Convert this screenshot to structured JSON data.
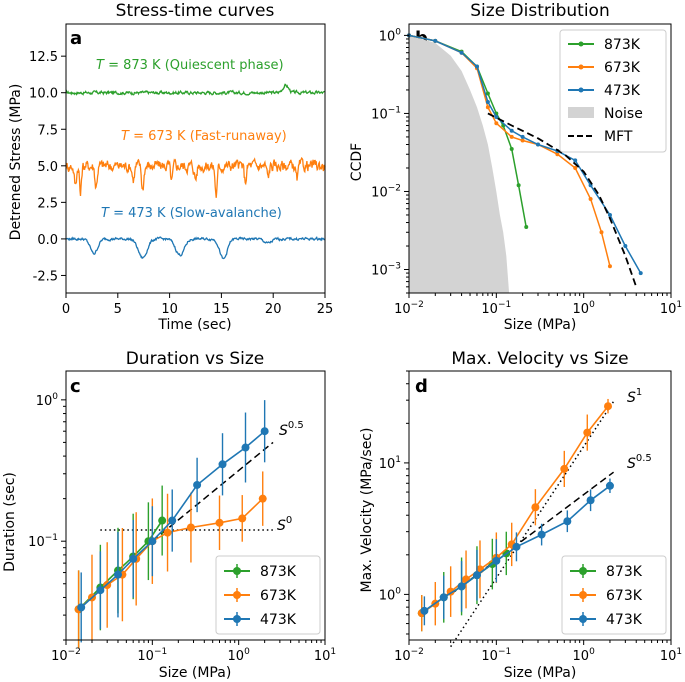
{
  "chart_data": [
    {
      "panel": "a",
      "type": "line",
      "title": "Stress-time curves",
      "xlabel": "Time (sec)",
      "ylabel": "Detrened Stress (MPa)",
      "xlim": [
        0,
        25
      ],
      "ylim": [
        -3.7,
        14.7
      ],
      "xticks": [
        "0",
        "5",
        "10",
        "15",
        "20",
        "25"
      ],
      "yticks": [
        "-2.5",
        "0.0",
        "2.5",
        "5.0",
        "7.5",
        "10.0",
        "12.5"
      ],
      "annotations": [
        {
          "T": "T",
          "text": " = 873 K (Quiescent phase)",
          "color": "#2ca02c"
        },
        {
          "T": "T",
          "text": " = 673 K (Fast-runaway)",
          "color": "#ff7f0e"
        },
        {
          "T": "T",
          "text": " = 473 K (Slow-avalanche)",
          "color": "#1f77b4"
        }
      ],
      "series": [
        {
          "name": "873K",
          "color": "#2ca02c",
          "baseline": 10.0,
          "noise": 0.12,
          "events": [
            [
              21.2,
              0.5,
              0.4
            ]
          ]
        },
        {
          "name": "673K",
          "color": "#ff7f0e",
          "baseline": 5.0,
          "noise": 0.45,
          "events": [
            [
              0.9,
              -1.3,
              0.15
            ],
            [
              1.4,
              -2.0,
              0.12
            ],
            [
              2.9,
              -1.4,
              0.15
            ],
            [
              6.5,
              -0.9,
              0.15
            ],
            [
              7.4,
              -1.6,
              0.15
            ],
            [
              10.2,
              -1.1,
              0.15
            ],
            [
              12.5,
              -0.9,
              0.15
            ],
            [
              14.5,
              -2.0,
              0.15
            ],
            [
              17.3,
              -1.1,
              0.15
            ],
            [
              19.5,
              -0.8,
              0.15
            ],
            [
              22.3,
              -1.0,
              0.15
            ]
          ]
        },
        {
          "name": "473K",
          "color": "#1f77b4",
          "baseline": 0.0,
          "noise": 0.1,
          "events": [
            [
              2.7,
              -1.0,
              0.5
            ],
            [
              7.4,
              -1.3,
              0.6
            ],
            [
              11.0,
              -1.1,
              0.6
            ],
            [
              15.2,
              -1.4,
              0.5
            ],
            [
              19.5,
              -0.3,
              0.5
            ]
          ]
        }
      ]
    },
    {
      "panel": "b",
      "type": "line",
      "title": "Size Distribution",
      "xlabel": "Size (MPa)",
      "ylabel": "CCDF",
      "xscale": "log",
      "yscale": "log",
      "xlim": [
        0.01,
        10
      ],
      "ylim": [
        0.0005,
        1.4
      ],
      "xticks": [
        {
          "base": "10",
          "exp": "−2"
        },
        {
          "base": "10",
          "exp": "−1"
        },
        {
          "base": "10",
          "exp": "0"
        },
        {
          "base": "10",
          "exp": "1"
        }
      ],
      "yticks": [
        {
          "base": "10",
          "exp": "−3"
        },
        {
          "base": "10",
          "exp": "−2"
        },
        {
          "base": "10",
          "exp": "−1"
        },
        {
          "base": "10",
          "exp": "0"
        }
      ],
      "legend": [
        "873K",
        "673K",
        "473K",
        "Noise",
        "MFT"
      ],
      "legend_position": "upper right",
      "series": [
        {
          "name": "873K",
          "color": "#2ca02c",
          "x": [
            0.01,
            0.02,
            0.04,
            0.06,
            0.08,
            0.1,
            0.12,
            0.15,
            0.18,
            0.22
          ],
          "y": [
            1.0,
            0.85,
            0.62,
            0.4,
            0.18,
            0.1,
            0.07,
            0.035,
            0.012,
            0.0035
          ]
        },
        {
          "name": "673K",
          "color": "#ff7f0e",
          "x": [
            0.01,
            0.02,
            0.04,
            0.06,
            0.08,
            0.1,
            0.15,
            0.2,
            0.3,
            0.5,
            0.8,
            1.2,
            1.6,
            2.0
          ],
          "y": [
            1.0,
            0.85,
            0.6,
            0.38,
            0.12,
            0.075,
            0.05,
            0.045,
            0.04,
            0.03,
            0.02,
            0.008,
            0.003,
            0.0011
          ]
        },
        {
          "name": "473K",
          "color": "#1f77b4",
          "x": [
            0.01,
            0.02,
            0.04,
            0.06,
            0.08,
            0.1,
            0.15,
            0.2,
            0.3,
            0.5,
            0.8,
            1.2,
            2.0,
            3.0,
            4.5
          ],
          "y": [
            1.0,
            0.85,
            0.6,
            0.4,
            0.14,
            0.09,
            0.06,
            0.05,
            0.04,
            0.033,
            0.025,
            0.012,
            0.005,
            0.002,
            0.0009
          ]
        },
        {
          "name": "MFT",
          "color": "#000000",
          "style": "dashed",
          "x": [
            0.08,
            0.15,
            0.3,
            0.6,
            1.0,
            1.5,
            2.0,
            3.0,
            4.0
          ],
          "y": [
            0.1,
            0.07,
            0.048,
            0.03,
            0.018,
            0.009,
            0.0045,
            0.0015,
            0.0006
          ]
        }
      ],
      "noise_fill": {
        "name": "Noise",
        "color": "#d3d3d3",
        "x": [
          0.01,
          0.02,
          0.03,
          0.04,
          0.05,
          0.06,
          0.07,
          0.08,
          0.09,
          0.1,
          0.11,
          0.12,
          0.13,
          0.14
        ],
        "y": [
          1.0,
          0.8,
          0.55,
          0.35,
          0.2,
          0.12,
          0.07,
          0.04,
          0.02,
          0.01,
          0.005,
          0.003,
          0.0015,
          0.0005
        ]
      }
    },
    {
      "panel": "c",
      "type": "scatter",
      "title": "Duration vs Size",
      "xlabel": "Size (MPa)",
      "ylabel": "Duration (sec)",
      "xscale": "log",
      "yscale": "log",
      "xlim": [
        0.01,
        10
      ],
      "ylim": [
        0.02,
        1.6
      ],
      "xticks": [
        {
          "base": "10",
          "exp": "−2"
        },
        {
          "base": "10",
          "exp": "−1"
        },
        {
          "base": "10",
          "exp": "0"
        },
        {
          "base": "10",
          "exp": "1"
        }
      ],
      "yticks": [
        {
          "base": "10",
          "exp": "−1"
        },
        {
          "base": "10",
          "exp": "0"
        }
      ],
      "legend": [
        "873K",
        "673K",
        "473K"
      ],
      "legend_position": "lower right",
      "fit_labels": [
        {
          "base": "S",
          "exp": "0.5"
        },
        {
          "base": "S",
          "exp": "0"
        }
      ],
      "series": [
        {
          "name": "873K",
          "color": "#2ca02c",
          "x": [
            0.014,
            0.025,
            0.04,
            0.06,
            0.09,
            0.13
          ],
          "y": [
            0.033,
            0.047,
            0.062,
            0.078,
            0.1,
            0.14
          ],
          "err": [
            0.5,
            0.55,
            0.55,
            0.55,
            0.5,
            0.45
          ]
        },
        {
          "name": "673K",
          "color": "#ff7f0e",
          "x": [
            0.014,
            0.02,
            0.03,
            0.045,
            0.065,
            0.1,
            0.15,
            0.28,
            0.6,
            1.1,
            1.9
          ],
          "y": [
            0.033,
            0.04,
            0.049,
            0.058,
            0.075,
            0.1,
            0.115,
            0.125,
            0.135,
            0.145,
            0.2
          ],
          "err": [
            0.5,
            0.55,
            0.55,
            0.6,
            0.6,
            0.55,
            0.5,
            0.45,
            0.35,
            0.3,
            0.35
          ]
        },
        {
          "name": "473K",
          "color": "#1f77b4",
          "x": [
            0.015,
            0.025,
            0.04,
            0.06,
            0.1,
            0.17,
            0.33,
            0.65,
            1.2,
            2.0
          ],
          "y": [
            0.034,
            0.045,
            0.058,
            0.075,
            0.1,
            0.14,
            0.25,
            0.35,
            0.46,
            0.6
          ],
          "err": [
            0.45,
            0.5,
            0.55,
            0.5,
            0.45,
            0.4,
            0.35,
            0.4,
            0.45,
            0.4
          ]
        }
      ],
      "fits": [
        {
          "style": "dashed",
          "x": [
            0.1,
            2.5
          ],
          "y": [
            0.1,
            0.5
          ]
        },
        {
          "style": "dotted",
          "x": [
            0.025,
            2.7
          ],
          "y": [
            0.12,
            0.12
          ]
        }
      ]
    },
    {
      "panel": "d",
      "type": "scatter",
      "title": "Max. Velocity vs Size",
      "xlabel": "Size (MPa)",
      "ylabel": "Max. Velocity (MPa/sec)",
      "xscale": "log",
      "yscale": "log",
      "xlim": [
        0.01,
        10
      ],
      "ylim": [
        0.45,
        50
      ],
      "xticks": [
        {
          "base": "10",
          "exp": "−2"
        },
        {
          "base": "10",
          "exp": "−1"
        },
        {
          "base": "10",
          "exp": "0"
        },
        {
          "base": "10",
          "exp": "1"
        }
      ],
      "yticks": [
        {
          "base": "10",
          "exp": "0"
        },
        {
          "base": "10",
          "exp": "1"
        }
      ],
      "legend": [
        "873K",
        "673K",
        "473K"
      ],
      "legend_position": "lower right",
      "fit_labels": [
        {
          "base": "S",
          "exp": "1"
        },
        {
          "base": "S",
          "exp": "0.5"
        }
      ],
      "series": [
        {
          "name": "873K",
          "color": "#2ca02c",
          "x": [
            0.014,
            0.025,
            0.04,
            0.06,
            0.09,
            0.13
          ],
          "y": [
            0.72,
            0.95,
            1.15,
            1.4,
            1.7,
            2.05
          ],
          "err": [
            0.25,
            0.35,
            0.4,
            0.4,
            0.35,
            0.3
          ]
        },
        {
          "name": "673K",
          "color": "#ff7f0e",
          "x": [
            0.014,
            0.02,
            0.03,
            0.045,
            0.065,
            0.1,
            0.15,
            0.28,
            0.6,
            1.1,
            1.9
          ],
          "y": [
            0.72,
            0.85,
            1.05,
            1.3,
            1.55,
            1.9,
            2.4,
            4.6,
            9.0,
            17.0,
            27.0
          ],
          "err": [
            0.25,
            0.3,
            0.35,
            0.4,
            0.4,
            0.35,
            0.3,
            0.25,
            0.25,
            0.25,
            0.1
          ]
        },
        {
          "name": "473K",
          "color": "#1f77b4",
          "x": [
            0.015,
            0.025,
            0.04,
            0.06,
            0.1,
            0.17,
            0.33,
            0.65,
            1.2,
            2.0
          ],
          "y": [
            0.75,
            0.95,
            1.15,
            1.4,
            1.8,
            2.3,
            2.85,
            3.6,
            5.2,
            6.7
          ],
          "err": [
            0.2,
            0.3,
            0.35,
            0.35,
            0.3,
            0.2,
            0.15,
            0.15,
            0.15,
            0.1
          ]
        }
      ],
      "fits": [
        {
          "style": "dashed",
          "x": [
            0.03,
            2.2
          ],
          "y": [
            1.0,
            8.5
          ]
        },
        {
          "style": "dotted",
          "x": [
            0.03,
            2.2
          ],
          "y": [
            0.4,
            29.3
          ]
        }
      ]
    }
  ],
  "panel_labels": [
    "a",
    "b",
    "c",
    "d"
  ]
}
